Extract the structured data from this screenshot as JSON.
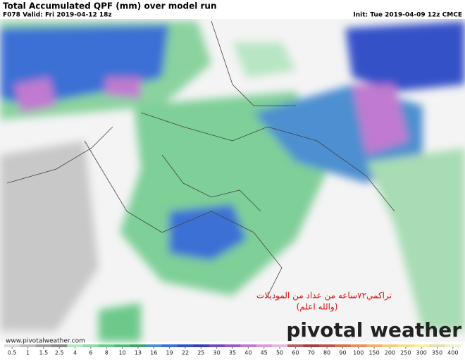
{
  "header": {
    "title": "Total Accumulated QPF (mm) over model run",
    "valid": "F078 Valid: Fri 2019-04-12 18z",
    "init": "Init: Tue 2019-04-09 12z CMCE"
  },
  "annotation": {
    "line1": "تراكمي٧٢ساعه من عداد من الموديلات",
    "line2": "(والله اعلم)"
  },
  "watermark": "pivotal weather",
  "url": "www.pivotalweather.com",
  "colorbar": {
    "ticks": [
      0.5,
      1,
      1.5,
      2.5,
      4,
      6,
      8,
      10,
      13,
      16,
      19,
      22,
      25,
      30,
      35,
      40,
      45,
      50,
      60,
      70,
      80,
      90,
      100,
      150,
      200,
      250,
      300,
      350,
      400
    ],
    "colors": [
      "#d9d9d9",
      "#bdbdbd",
      "#a0a0a0",
      "#8a8a8a",
      "#b8e6c4",
      "#93d8a6",
      "#6cc98a",
      "#4fb879",
      "#3da56b",
      "#4d8fd0",
      "#3c6fd4",
      "#3451c8",
      "#3a3db8",
      "#6e4bb8",
      "#9b5cc0",
      "#c07ad0",
      "#d89ad8",
      "#e8b8e0",
      "#b06060",
      "#a04040",
      "#c05050",
      "#d87050",
      "#e89060",
      "#f0b070",
      "#f0d080",
      "#f0e090",
      "#f8f0a0",
      "#e0e0b0",
      "#f0f0d0"
    ]
  }
}
